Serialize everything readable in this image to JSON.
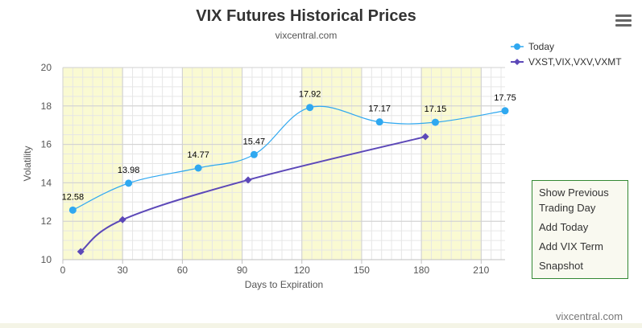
{
  "title": "VIX Futures Historical Prices",
  "subtitle": "vixcentral.com",
  "watermark": "vixcentral.com",
  "options": [
    "Show Previous Trading Day",
    "Add Today",
    "Add VIX Term",
    "Snapshot"
  ],
  "colors": {
    "today": "#2fa8f0",
    "term": "#5c48b8",
    "band": "#fafad2",
    "panel_border": "#338833"
  },
  "chart_data": {
    "type": "line",
    "title": "VIX Futures Historical Prices",
    "subtitle": "vixcentral.com",
    "xlabel": "Days to Expiration",
    "ylabel": "Volatility",
    "xlim": [
      0,
      222
    ],
    "ylim": [
      10,
      20
    ],
    "x_ticks": [
      0,
      30,
      60,
      90,
      120,
      150,
      180,
      210
    ],
    "y_ticks": [
      10,
      12,
      14,
      16,
      18,
      20
    ],
    "x_bands": [
      [
        0,
        30
      ],
      [
        60,
        90
      ],
      [
        120,
        150
      ],
      [
        180,
        210
      ]
    ],
    "grid": true,
    "legend": "top-right",
    "series": [
      {
        "name": "Today",
        "marker": "circle",
        "smooth": true,
        "points": [
          {
            "x": 5,
            "y": 12.58,
            "label": "12.58"
          },
          {
            "x": 33,
            "y": 13.98,
            "label": "13.98"
          },
          {
            "x": 68,
            "y": 14.77,
            "label": "14.77"
          },
          {
            "x": 96,
            "y": 15.47,
            "label": "15.47"
          },
          {
            "x": 124,
            "y": 17.92,
            "label": "17.92"
          },
          {
            "x": 159,
            "y": 17.17,
            "label": "17.17"
          },
          {
            "x": 187,
            "y": 17.15,
            "label": "17.15"
          },
          {
            "x": 222,
            "y": 17.75,
            "label": "17.75"
          }
        ]
      },
      {
        "name": "VXST,VIX,VXV,VXMT",
        "marker": "diamond",
        "smooth": true,
        "points": [
          {
            "x": 9,
            "y": 10.42
          },
          {
            "x": 30,
            "y": 12.08
          },
          {
            "x": 93,
            "y": 14.15
          },
          {
            "x": 182,
            "y": 16.4
          }
        ]
      }
    ]
  }
}
